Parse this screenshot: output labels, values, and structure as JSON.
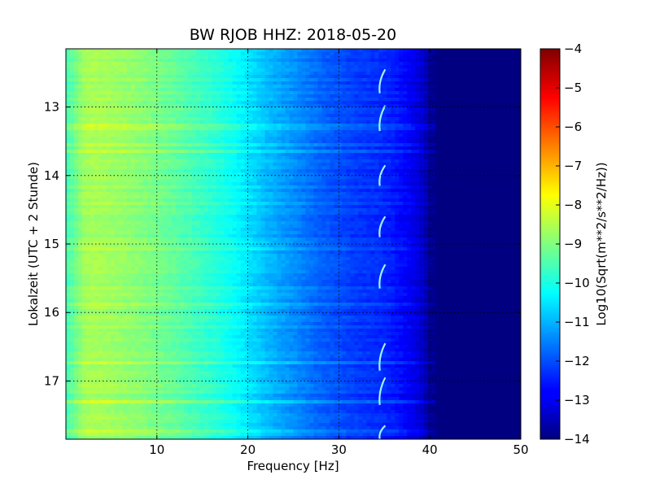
{
  "chart_data": {
    "type": "heatmap",
    "title": "BW RJOB HHZ: 2018-05-20",
    "xlabel": "Frequency [Hz]",
    "ylabel": "Lokalzeit (UTC + 2 Stunde)",
    "colorbar_label": "Log10(Sqrt(m**2/s**2/Hz))",
    "xlim": [
      0,
      50
    ],
    "ylim": [
      17.85,
      12.15
    ],
    "y_inverted": true,
    "xticks": [
      10,
      20,
      30,
      40,
      50
    ],
    "xtick_labels": [
      "10",
      "20",
      "30",
      "40",
      "50"
    ],
    "yticks": [
      13,
      14,
      15,
      16,
      17
    ],
    "ytick_labels": [
      "13",
      "14",
      "15",
      "16",
      "17"
    ],
    "grid": true,
    "colormap": "jet",
    "clim": [
      -14,
      -4
    ],
    "colorbar_ticks": [
      -4,
      -5,
      -6,
      -7,
      -8,
      -9,
      -10,
      -11,
      -12,
      -13,
      -14
    ],
    "colorbar_tick_labels": [
      "−4",
      "−5",
      "−6",
      "−7",
      "−8",
      "−9",
      "−10",
      "−11",
      "−12",
      "−13",
      "−14"
    ],
    "frequency_profile": {
      "frequency_hz": [
        0,
        1,
        2,
        3,
        5,
        8,
        12,
        16,
        18,
        20,
        22,
        24,
        26,
        28,
        30,
        32,
        34,
        36,
        38,
        39,
        40,
        41,
        42,
        50
      ],
      "log10_amplitude": [
        -9.6,
        -9.2,
        -8.7,
        -8.6,
        -8.7,
        -8.9,
        -9.3,
        -9.8,
        -10.1,
        -10.5,
        -10.9,
        -11.2,
        -11.5,
        -11.8,
        -12.0,
        -12.2,
        -12.3,
        -12.5,
        -12.9,
        -13.2,
        -13.8,
        -14.0,
        -14.0,
        -14.0
      ]
    },
    "transients": {
      "frequency_hz": 34.5,
      "start_hours": [
        12.45,
        12.98,
        13.85,
        14.6,
        15.3,
        16.45,
        16.95,
        17.65
      ],
      "end_hours": [
        12.8,
        13.35,
        14.15,
        14.9,
        15.65,
        16.85,
        17.35,
        17.85
      ]
    }
  }
}
